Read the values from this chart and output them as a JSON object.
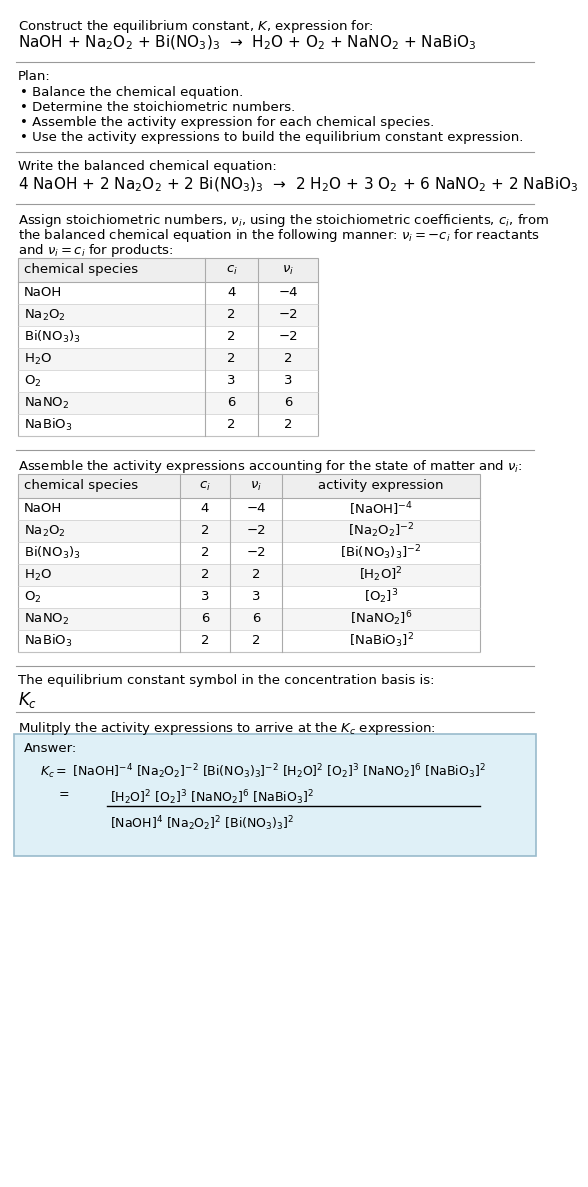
{
  "title_line1": "Construct the equilibrium constant, $K$, expression for:",
  "title_line2": "NaOH + Na$_2$O$_2$ + Bi(NO$_3$)$_3$  →  H$_2$O + O$_2$ + NaNO$_2$ + NaBiO$_3$",
  "plan_header": "Plan:",
  "plan_items": [
    "• Balance the chemical equation.",
    "• Determine the stoichiometric numbers.",
    "• Assemble the activity expression for each chemical species.",
    "• Use the activity expressions to build the equilibrium constant expression."
  ],
  "balanced_header": "Write the balanced chemical equation:",
  "balanced_eq": "4 NaOH + 2 Na$_2$O$_2$ + 2 Bi(NO$_3$)$_3$  →  2 H$_2$O + 3 O$_2$ + 6 NaNO$_2$ + 2 NaBiO$_3$",
  "stoich_line1": "Assign stoichiometric numbers, $\\nu_i$, using the stoichiometric coefficients, $c_i$, from",
  "stoich_line2": "the balanced chemical equation in the following manner: $\\nu_i = -c_i$ for reactants",
  "stoich_line3": "and $\\nu_i = c_i$ for products:",
  "table1_headers": [
    "chemical species",
    "$c_i$",
    "$\\nu_i$"
  ],
  "table1_rows": [
    [
      "NaOH",
      "4",
      "−4"
    ],
    [
      "Na$_2$O$_2$",
      "2",
      "−2"
    ],
    [
      "Bi(NO$_3$)$_3$",
      "2",
      "−2"
    ],
    [
      "H$_2$O",
      "2",
      "2"
    ],
    [
      "O$_2$",
      "3",
      "3"
    ],
    [
      "NaNO$_2$",
      "6",
      "6"
    ],
    [
      "NaBiO$_3$",
      "2",
      "2"
    ]
  ],
  "activity_header": "Assemble the activity expressions accounting for the state of matter and $\\nu_i$:",
  "table2_headers": [
    "chemical species",
    "$c_i$",
    "$\\nu_i$",
    "activity expression"
  ],
  "table2_rows": [
    [
      "NaOH",
      "4",
      "−4",
      "[NaOH]$^{-4}$"
    ],
    [
      "Na$_2$O$_2$",
      "2",
      "−2",
      "[Na$_2$O$_2$]$^{-2}$"
    ],
    [
      "Bi(NO$_3$)$_3$",
      "2",
      "−2",
      "[Bi(NO$_3$)$_3$]$^{-2}$"
    ],
    [
      "H$_2$O",
      "2",
      "2",
      "[H$_2$O]$^2$"
    ],
    [
      "O$_2$",
      "3",
      "3",
      "[O$_2$]$^3$"
    ],
    [
      "NaNO$_2$",
      "6",
      "6",
      "[NaNO$_2$]$^6$"
    ],
    [
      "NaBiO$_3$",
      "2",
      "2",
      "[NaBiO$_3$]$^2$"
    ]
  ],
  "kc_header": "The equilibrium constant symbol in the concentration basis is:",
  "kc_symbol": "$K_c$",
  "multiply_header": "Mulitply the activity expressions to arrive at the $K_c$ expression:",
  "answer_label": "Answer:",
  "answer_line1": "$K_c = $ [NaOH]$^{-4}$ [Na$_2$O$_2$]$^{-2}$ [Bi(NO$_3$)$_3$]$^{-2}$ [H$_2$O]$^2$ [O$_2$]$^3$ [NaNO$_2$]$^6$ [NaBiO$_3$]$^2$",
  "answer_eq_lhs": "    $= $",
  "answer_num": "[H$_2$O]$^2$ [O$_2$]$^3$ [NaNO$_2$]$^6$ [NaBiO$_3$]$^2$",
  "answer_den": "[NaOH]$^4$ [Na$_2$O$_2$]$^2$ [Bi(NO$_3$)$_3$]$^2$",
  "bg_color": "#ffffff",
  "table_header_bg": "#eeeeee",
  "answer_box_bg": "#dff0f7",
  "answer_box_border": "#99bbcc",
  "separator_color": "#999999"
}
